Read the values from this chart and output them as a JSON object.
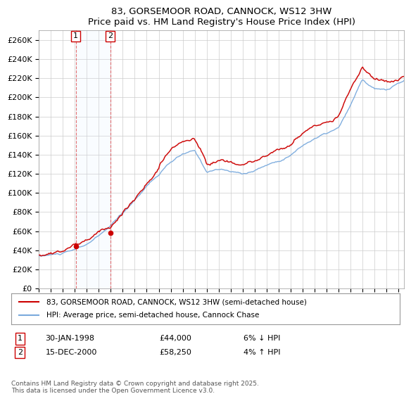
{
  "title": "83, GORSEMOOR ROAD, CANNOCK, WS12 3HW",
  "subtitle": "Price paid vs. HM Land Registry's House Price Index (HPI)",
  "ylabel_ticks": [
    "£0",
    "£20K",
    "£40K",
    "£60K",
    "£80K",
    "£100K",
    "£120K",
    "£140K",
    "£160K",
    "£180K",
    "£200K",
    "£220K",
    "£240K",
    "£260K"
  ],
  "ytick_values": [
    0,
    20000,
    40000,
    60000,
    80000,
    100000,
    120000,
    140000,
    160000,
    180000,
    200000,
    220000,
    240000,
    260000
  ],
  "ylim": [
    0,
    270000
  ],
  "legend_line1": "83, GORSEMOOR ROAD, CANNOCK, WS12 3HW (semi-detached house)",
  "legend_line2": "HPI: Average price, semi-detached house, Cannock Chase",
  "line_color_red": "#cc0000",
  "line_color_blue": "#7aaadd",
  "shade_color": "#ddeeff",
  "transaction1_date": "30-JAN-1998",
  "transaction1_price": "£44,000",
  "transaction1_hpi": "6% ↓ HPI",
  "transaction1_year": 1998.08,
  "transaction1_value": 44000,
  "transaction2_date": "15-DEC-2000",
  "transaction2_price": "£58,250",
  "transaction2_hpi": "4% ↑ HPI",
  "transaction2_year": 2000.96,
  "transaction2_value": 58250,
  "footnote": "Contains HM Land Registry data © Crown copyright and database right 2025.\nThis data is licensed under the Open Government Licence v3.0.",
  "background_color": "#ffffff",
  "grid_color": "#cccccc",
  "plot_bg_color": "#ffffff"
}
